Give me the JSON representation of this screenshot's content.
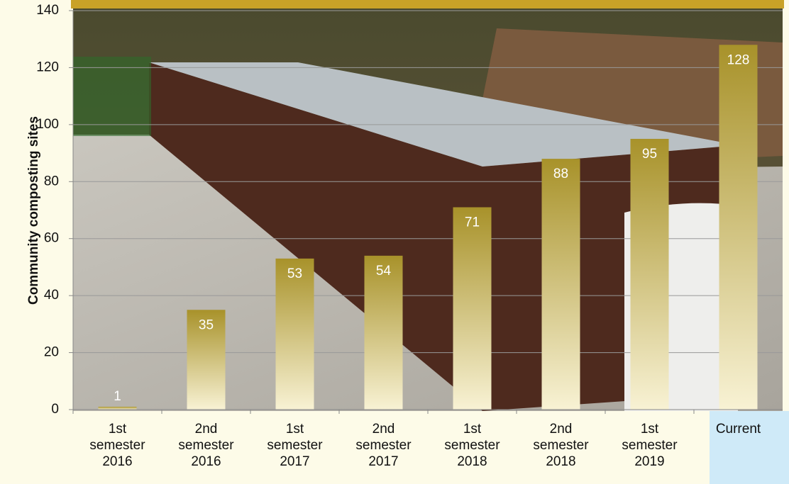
{
  "chart_data": {
    "type": "bar",
    "y_label": "Community composting sites",
    "categories": [
      "1st semester 2016",
      "2nd semester 2016",
      "1st semester 2017",
      "2nd semester 2017",
      "1st semester 2018",
      "2nd semester 2018",
      "1st semester 2019",
      "Current"
    ],
    "values": [
      1,
      35,
      53,
      54,
      71,
      88,
      95,
      128
    ],
    "color": "#a8922a",
    "ylim": [
      0,
      140
    ],
    "yticks": [
      0,
      20,
      40,
      60,
      80,
      100,
      120,
      140
    ],
    "grid": true
  }
}
